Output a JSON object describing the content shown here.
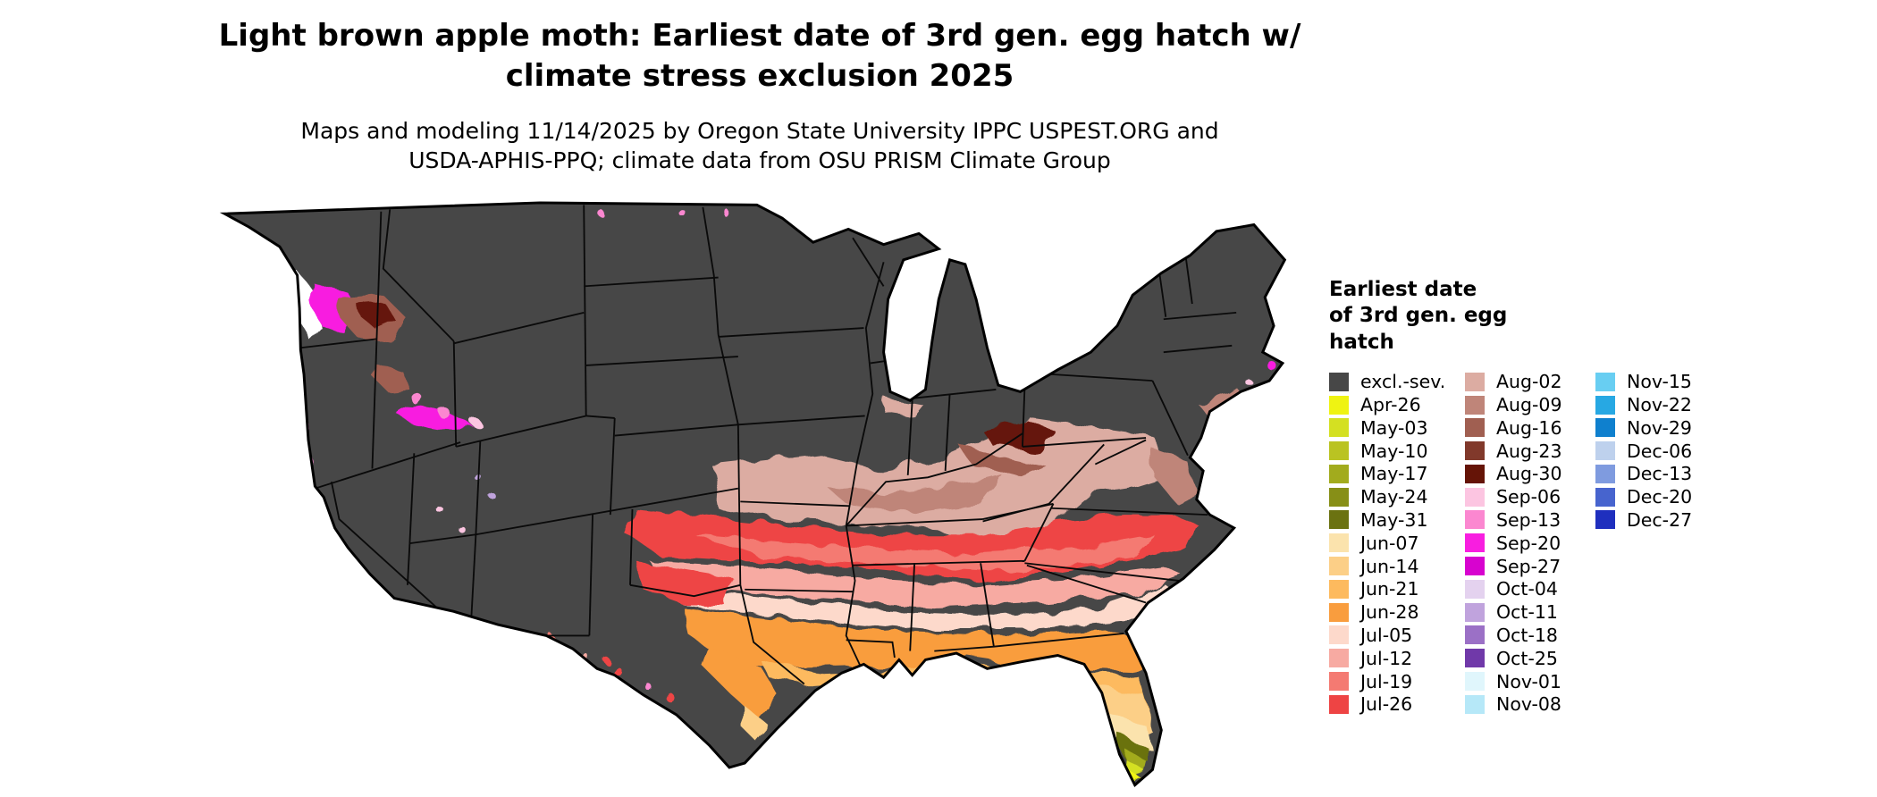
{
  "title": {
    "line1": "Light brown apple moth: Earliest date of 3rd gen. egg hatch w/",
    "line2": "climate stress exclusion 2025"
  },
  "subtitle": {
    "line1": "Maps and modeling 11/14/2025 by Oregon State University IPPC USPEST.ORG and",
    "line2": "USDA-APHIS-PPQ; climate data from OSU PRISM Climate Group"
  },
  "legend": {
    "title_lines": [
      "Earliest date",
      "of 3rd gen. egg",
      "hatch"
    ],
    "columns": [
      [
        {
          "label": "excl.-sev.",
          "color": "#474747"
        },
        {
          "label": "Apr-26",
          "color": "#eff312"
        },
        {
          "label": "May-03",
          "color": "#d4e022"
        },
        {
          "label": "May-10",
          "color": "#bac322"
        },
        {
          "label": "May-17",
          "color": "#a2ab1d"
        },
        {
          "label": "May-24",
          "color": "#878f17"
        },
        {
          "label": "May-31",
          "color": "#6b7211"
        },
        {
          "label": "Jun-07",
          "color": "#fbe3ad"
        },
        {
          "label": "Jun-14",
          "color": "#fccf87"
        },
        {
          "label": "Jun-21",
          "color": "#fdba5e"
        },
        {
          "label": "Jun-28",
          "color": "#f99d3e"
        },
        {
          "label": "Jul-05",
          "color": "#fdd9cb"
        },
        {
          "label": "Jul-12",
          "color": "#f7aaa2"
        },
        {
          "label": "Jul-19",
          "color": "#f47a72"
        },
        {
          "label": "Jul-26",
          "color": "#ee4444"
        }
      ],
      [
        {
          "label": "Aug-02",
          "color": "#dcaca2"
        },
        {
          "label": "Aug-09",
          "color": "#bf8579"
        },
        {
          "label": "Aug-16",
          "color": "#a05f51"
        },
        {
          "label": "Aug-23",
          "color": "#81392b"
        },
        {
          "label": "Aug-30",
          "color": "#651407"
        },
        {
          "label": "Sep-06",
          "color": "#fcc5e1"
        },
        {
          "label": "Sep-13",
          "color": "#fb87d0"
        },
        {
          "label": "Sep-20",
          "color": "#f81ee0"
        },
        {
          "label": "Sep-27",
          "color": "#d703cf"
        },
        {
          "label": "Oct-04",
          "color": "#e4d2ef"
        },
        {
          "label": "Oct-11",
          "color": "#c0a3dd"
        },
        {
          "label": "Oct-18",
          "color": "#9b70c6"
        },
        {
          "label": "Oct-25",
          "color": "#7039a9"
        },
        {
          "label": "Nov-01",
          "color": "#e0f6fc"
        },
        {
          "label": "Nov-08",
          "color": "#b6e8f8"
        }
      ],
      [
        {
          "label": "Nov-15",
          "color": "#68cef2"
        },
        {
          "label": "Nov-22",
          "color": "#27a8e3"
        },
        {
          "label": "Nov-29",
          "color": "#0f80ce"
        },
        {
          "label": "Dec-06",
          "color": "#bed1ed"
        },
        {
          "label": "Dec-13",
          "color": "#7f9bdf"
        },
        {
          "label": "Dec-20",
          "color": "#4764ce"
        },
        {
          "label": "Dec-27",
          "color": "#1f2fbe"
        }
      ]
    ]
  },
  "map": {
    "extra_colors": {
      "white": "#ffffff"
    },
    "base_region_label": "excl.-sev."
  }
}
